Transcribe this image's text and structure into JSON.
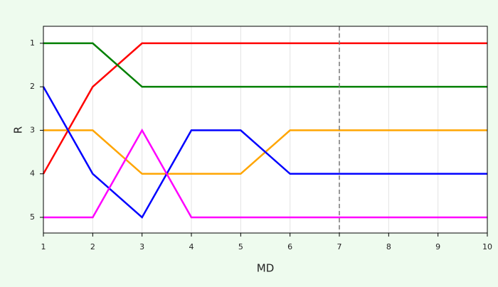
{
  "chart_data": {
    "type": "line",
    "x_label": "MD",
    "y_label": "R",
    "x": [
      1,
      2,
      3,
      4,
      5,
      6,
      7,
      8,
      9,
      10
    ],
    "series": [
      {
        "color": "#ff0000",
        "values": [
          4,
          2,
          1,
          1,
          1,
          1,
          1,
          1,
          1,
          1
        ]
      },
      {
        "color": "#008000",
        "values": [
          1,
          1,
          2,
          2,
          2,
          2,
          2,
          2,
          2,
          2
        ]
      },
      {
        "color": "#ffa500",
        "values": [
          3,
          3,
          4,
          4,
          4,
          3,
          3,
          3,
          3,
          3
        ]
      },
      {
        "color": "#0000ff",
        "values": [
          2,
          4,
          5,
          3,
          3,
          4,
          4,
          4,
          4,
          4
        ]
      },
      {
        "color": "#ff00ff",
        "values": [
          5,
          5,
          3,
          5,
          5,
          5,
          5,
          5,
          5,
          5
        ]
      }
    ],
    "xlim": [
      1,
      10
    ],
    "ylim": [
      5.36,
      0.61
    ],
    "xticks": [
      1,
      2,
      3,
      4,
      5,
      6,
      7,
      8,
      9,
      10
    ],
    "yticks": [
      1,
      2,
      3,
      4,
      5
    ],
    "x_grid": true,
    "vline_x": 7
  }
}
